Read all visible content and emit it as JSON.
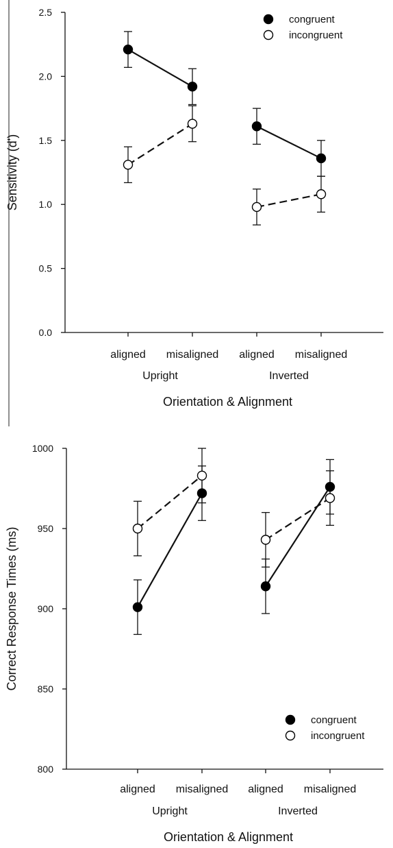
{
  "chart_data": [
    {
      "type": "line",
      "title": "",
      "xlabel": "Orientation & Alignment",
      "ylabel": "Sensitivity (d')",
      "ylim": [
        0,
        2.5
      ],
      "yticks": [
        "0.0",
        "0.5",
        "1.0",
        "1.5",
        "2.0",
        "2.5"
      ],
      "categories": [
        "aligned",
        "misaligned",
        "aligned",
        "misaligned"
      ],
      "groups": [
        "Upright",
        "Inverted"
      ],
      "legend_position": "top-right",
      "series": [
        {
          "name": "congruent",
          "marker": "filled-circle",
          "line": "solid",
          "values": [
            2.21,
            1.92,
            1.61,
            1.36
          ],
          "error": [
            0.14,
            0.14,
            0.14,
            0.14
          ]
        },
        {
          "name": "incongruent",
          "marker": "open-circle",
          "line": "dashed",
          "values": [
            1.31,
            1.63,
            0.98,
            1.08
          ],
          "error": [
            0.14,
            0.14,
            0.14,
            0.14
          ]
        }
      ]
    },
    {
      "type": "line",
      "title": "",
      "xlabel": "Orientation & Alignment",
      "ylabel": "Correct Response Times (ms)",
      "ylim": [
        800,
        1000
      ],
      "yticks": [
        "800",
        "850",
        "900",
        "950",
        "1000"
      ],
      "categories": [
        "aligned",
        "misaligned",
        "aligned",
        "misaligned"
      ],
      "groups": [
        "Upright",
        "Inverted"
      ],
      "legend_position": "bottom-right",
      "series": [
        {
          "name": "congruent",
          "marker": "filled-circle",
          "line": "solid",
          "values": [
            901,
            972,
            914,
            976
          ],
          "error": [
            17,
            17,
            17,
            17
          ]
        },
        {
          "name": "incongruent",
          "marker": "open-circle",
          "line": "dashed",
          "values": [
            950,
            983,
            943,
            969
          ],
          "error": [
            17,
            17,
            17,
            17
          ]
        }
      ]
    }
  ]
}
